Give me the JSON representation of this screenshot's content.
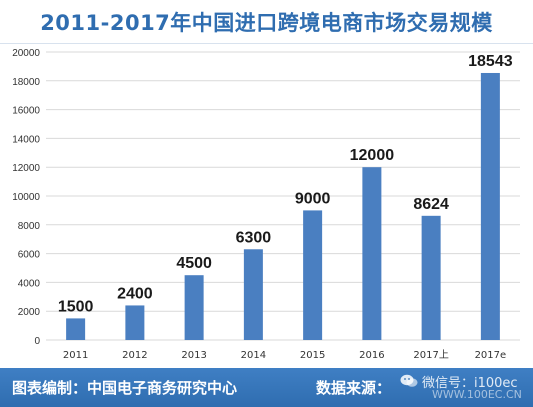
{
  "header": {
    "title": "2011-2017年中国进口跨境电商市场交易规模"
  },
  "chart_data": {
    "type": "bar",
    "title": "2011-2017年中国进口跨境电商市场交易规模",
    "categories": [
      "2011",
      "2012",
      "2013",
      "2014",
      "2015",
      "2016",
      "2017上",
      "2017e"
    ],
    "values": [
      1500,
      2400,
      4500,
      6300,
      9000,
      12000,
      8624,
      18543
    ],
    "data_labels": [
      "1500",
      "2400",
      "4500",
      "6300",
      "9000",
      "12000",
      "8624",
      "18543"
    ],
    "xlabel": "",
    "ylabel": "",
    "ylim": [
      0,
      20000
    ],
    "yticks": [
      0,
      2000,
      4000,
      6000,
      8000,
      10000,
      12000,
      14000,
      16000,
      18000,
      20000
    ],
    "grid": true,
    "legend": "none",
    "bar_color": "#4a7fc1"
  },
  "footer": {
    "source_left": "图表编制：中国电子商务研究中心",
    "source_right": "数据来源：",
    "watermark_text": "微信号：i100ec",
    "watermark_url": "WWW.100EC.CN"
  },
  "colors": {
    "title": "#2f6db0",
    "footer_bg": "#2f6db0",
    "bar": "#4a7fc1",
    "grid": "#d9d9d9"
  }
}
